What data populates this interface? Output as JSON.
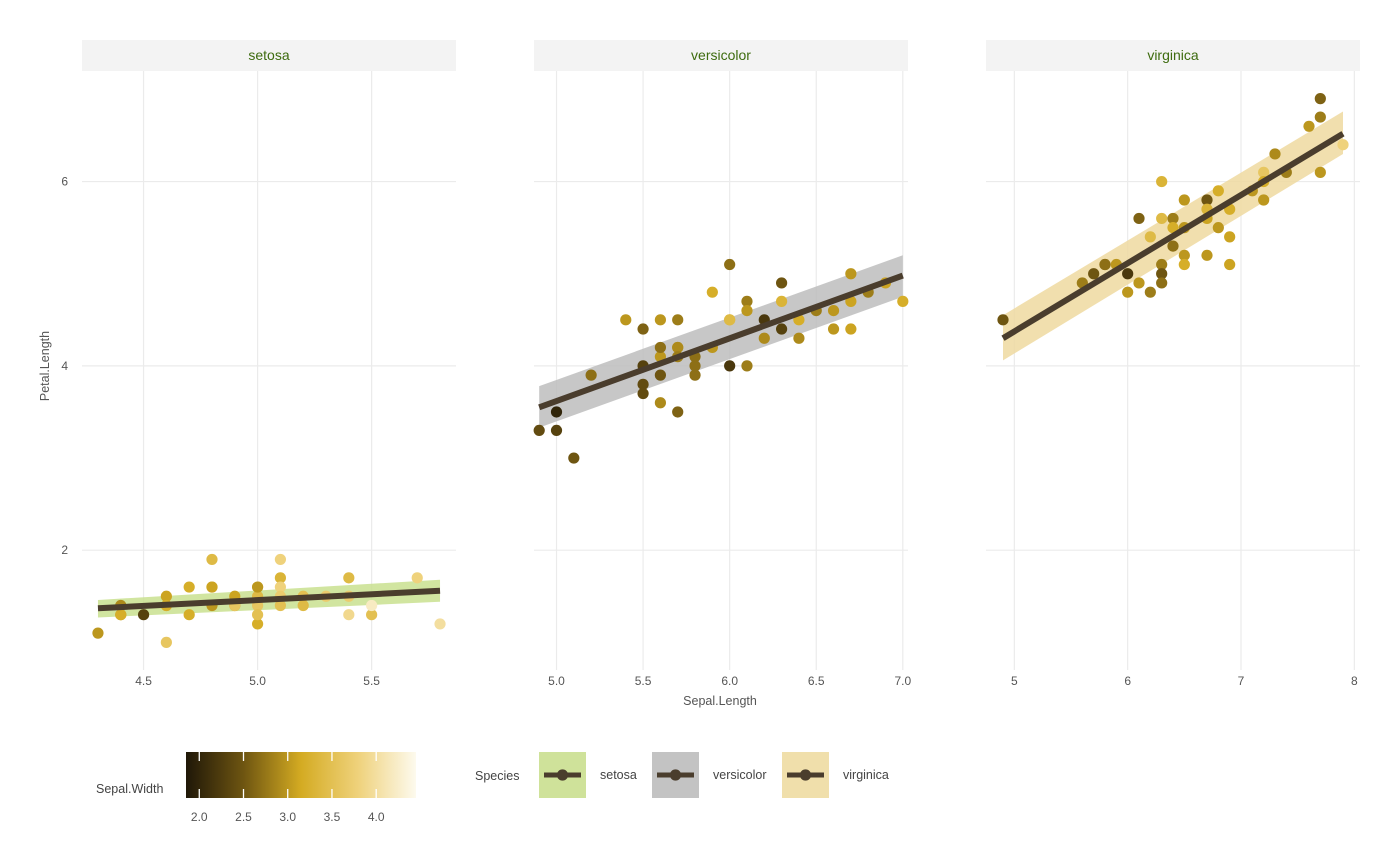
{
  "chart_data": {
    "type": "scatter",
    "facet_by": "Species",
    "xlabel": "Sepal.Length",
    "ylabel": "Petal.Length",
    "ylim": [
      0.7,
      7.2
    ],
    "y_ticks": [
      2,
      4,
      6
    ],
    "panels": [
      {
        "name": "setosa",
        "xlim": [
          4.23,
          5.87
        ],
        "x_ticks": [
          4.5,
          5.0,
          5.5
        ],
        "x_tick_labels": [
          "4.5",
          "5.0",
          "5.5"
        ],
        "band_color": "#c9e08f",
        "fit": {
          "x0": 4.3,
          "y0": 1.37,
          "x1": 5.8,
          "y1": 1.56,
          "lo0": 1.27,
          "hi0": 1.46,
          "lo1": 1.44,
          "hi1": 1.68
        },
        "points": [
          [
            4.3,
            1.1,
            3.0
          ],
          [
            4.4,
            1.4,
            2.9
          ],
          [
            4.4,
            1.3,
            3.0
          ],
          [
            4.4,
            1.3,
            3.2
          ],
          [
            4.5,
            1.3,
            2.3
          ],
          [
            4.6,
            1.4,
            3.4
          ],
          [
            4.6,
            1.5,
            3.1
          ],
          [
            4.6,
            1.0,
            3.6
          ],
          [
            4.6,
            1.4,
            3.2
          ],
          [
            4.7,
            1.6,
            3.2
          ],
          [
            4.7,
            1.3,
            3.2
          ],
          [
            4.8,
            1.9,
            3.4
          ],
          [
            4.8,
            1.6,
            3.4
          ],
          [
            4.8,
            1.4,
            3.0
          ],
          [
            4.8,
            1.6,
            3.1
          ],
          [
            4.9,
            1.4,
            3.0
          ],
          [
            4.9,
            1.5,
            3.1
          ],
          [
            4.9,
            1.4,
            3.6
          ],
          [
            5.0,
            1.6,
            3.5
          ],
          [
            5.0,
            1.4,
            3.6
          ],
          [
            5.0,
            1.5,
            3.4
          ],
          [
            5.0,
            1.2,
            3.2
          ],
          [
            5.0,
            1.3,
            3.5
          ],
          [
            5.0,
            1.6,
            3.0
          ],
          [
            5.1,
            1.9,
            3.8
          ],
          [
            5.1,
            1.7,
            3.3
          ],
          [
            5.1,
            1.6,
            3.8
          ],
          [
            5.1,
            1.4,
            3.5
          ],
          [
            5.1,
            1.5,
            3.7
          ],
          [
            5.2,
            1.5,
            3.5
          ],
          [
            5.2,
            1.4,
            3.4
          ],
          [
            5.3,
            1.5,
            3.7
          ],
          [
            5.4,
            1.7,
            3.4
          ],
          [
            5.4,
            1.5,
            3.7
          ],
          [
            5.4,
            1.3,
            3.9
          ],
          [
            5.5,
            1.3,
            3.5
          ],
          [
            5.5,
            1.4,
            4.2
          ],
          [
            5.7,
            1.7,
            3.8
          ],
          [
            5.8,
            1.2,
            4.0
          ]
        ]
      },
      {
        "name": "versicolor",
        "xlim": [
          4.87,
          7.03
        ],
        "x_ticks": [
          5.0,
          5.5,
          6.0,
          6.5,
          7.0
        ],
        "x_tick_labels": [
          "5.0",
          "5.5",
          "6.0",
          "6.5",
          "7.0"
        ],
        "band_color": "#bdbdbd",
        "fit": {
          "x0": 4.9,
          "y0": 3.55,
          "x1": 7.0,
          "y1": 4.98,
          "lo0": 3.33,
          "hi0": 3.78,
          "lo1": 4.75,
          "hi1": 5.2
        },
        "points": [
          [
            4.9,
            3.3,
            2.4
          ],
          [
            5.0,
            3.5,
            2.0
          ],
          [
            5.0,
            3.3,
            2.3
          ],
          [
            5.1,
            3.0,
            2.5
          ],
          [
            5.2,
            3.9,
            2.7
          ],
          [
            5.4,
            4.5,
            3.0
          ],
          [
            5.5,
            4.0,
            2.3
          ],
          [
            5.5,
            4.4,
            2.6
          ],
          [
            5.5,
            3.8,
            2.4
          ],
          [
            5.5,
            3.7,
            2.4
          ],
          [
            5.6,
            4.5,
            3.0
          ],
          [
            5.6,
            4.1,
            3.0
          ],
          [
            5.6,
            4.2,
            2.7
          ],
          [
            5.6,
            3.9,
            2.5
          ],
          [
            5.6,
            3.6,
            2.9
          ],
          [
            5.7,
            4.5,
            2.8
          ],
          [
            5.7,
            4.2,
            3.0
          ],
          [
            5.7,
            4.2,
            2.9
          ],
          [
            5.7,
            4.1,
            2.8
          ],
          [
            5.7,
            3.5,
            2.6
          ],
          [
            5.8,
            4.1,
            2.7
          ],
          [
            5.8,
            4.0,
            2.7
          ],
          [
            5.8,
            3.9,
            2.7
          ],
          [
            5.9,
            4.8,
            3.2
          ],
          [
            5.9,
            4.2,
            3.0
          ],
          [
            6.0,
            5.1,
            2.7
          ],
          [
            6.0,
            4.5,
            3.4
          ],
          [
            6.0,
            4.5,
            3.4
          ],
          [
            6.0,
            4.0,
            2.2
          ],
          [
            6.1,
            4.7,
            2.8
          ],
          [
            6.1,
            4.6,
            3.0
          ],
          [
            6.1,
            4.0,
            2.8
          ],
          [
            6.2,
            4.5,
            2.2
          ],
          [
            6.2,
            4.3,
            2.9
          ],
          [
            6.3,
            4.9,
            2.5
          ],
          [
            6.3,
            4.7,
            3.3
          ],
          [
            6.3,
            4.4,
            2.3
          ],
          [
            6.4,
            4.5,
            3.2
          ],
          [
            6.4,
            4.3,
            2.9
          ],
          [
            6.5,
            4.6,
            2.8
          ],
          [
            6.6,
            4.6,
            3.0
          ],
          [
            6.6,
            4.4,
            3.0
          ],
          [
            6.7,
            5.0,
            3.0
          ],
          [
            6.7,
            4.7,
            3.1
          ],
          [
            6.7,
            4.4,
            3.1
          ],
          [
            6.8,
            4.8,
            2.8
          ],
          [
            6.9,
            4.9,
            3.1
          ],
          [
            7.0,
            4.7,
            3.2
          ]
        ]
      },
      {
        "name": "virginica",
        "xlim": [
          4.75,
          8.05
        ],
        "x_ticks": [
          5,
          6,
          7,
          8
        ],
        "x_tick_labels": [
          "5",
          "6",
          "7",
          "8"
        ],
        "band_color": "#efd9a0",
        "fit": {
          "x0": 4.9,
          "y0": 4.3,
          "x1": 7.9,
          "y1": 6.52,
          "lo0": 4.06,
          "hi0": 4.55,
          "lo1": 6.3,
          "hi1": 6.76
        },
        "points": [
          [
            4.9,
            4.5,
            2.5
          ],
          [
            5.6,
            4.9,
            2.8
          ],
          [
            5.7,
            5.0,
            2.5
          ],
          [
            5.8,
            5.1,
            2.7
          ],
          [
            5.8,
            5.1,
            2.7
          ],
          [
            5.9,
            5.1,
            3.0
          ],
          [
            6.0,
            5.0,
            2.2
          ],
          [
            6.0,
            4.8,
            3.0
          ],
          [
            6.1,
            5.6,
            2.6
          ],
          [
            6.1,
            4.9,
            3.0
          ],
          [
            6.2,
            5.4,
            3.4
          ],
          [
            6.2,
            4.8,
            2.8
          ],
          [
            6.3,
            6.0,
            3.3
          ],
          [
            6.3,
            5.6,
            3.4
          ],
          [
            6.3,
            5.1,
            2.8
          ],
          [
            6.3,
            5.0,
            2.5
          ],
          [
            6.3,
            4.9,
            2.7
          ],
          [
            6.4,
            5.6,
            2.8
          ],
          [
            6.4,
            5.5,
            3.2
          ],
          [
            6.4,
            5.3,
            2.7
          ],
          [
            6.5,
            5.8,
            3.0
          ],
          [
            6.5,
            5.5,
            3.0
          ],
          [
            6.5,
            5.2,
            3.0
          ],
          [
            6.5,
            5.1,
            3.2
          ],
          [
            6.7,
            5.8,
            2.5
          ],
          [
            6.7,
            5.7,
            3.3
          ],
          [
            6.7,
            5.6,
            3.1
          ],
          [
            6.7,
            5.2,
            3.0
          ],
          [
            6.8,
            5.9,
            3.2
          ],
          [
            6.8,
            5.5,
            3.0
          ],
          [
            6.9,
            5.7,
            3.2
          ],
          [
            6.9,
            5.4,
            3.1
          ],
          [
            6.9,
            5.1,
            3.1
          ],
          [
            7.1,
            5.9,
            3.0
          ],
          [
            7.2,
            6.1,
            3.6
          ],
          [
            7.2,
            6.0,
            3.2
          ],
          [
            7.2,
            5.8,
            3.0
          ],
          [
            7.3,
            6.3,
            2.9
          ],
          [
            7.4,
            6.1,
            2.8
          ],
          [
            7.6,
            6.6,
            3.0
          ],
          [
            7.7,
            6.9,
            2.6
          ],
          [
            7.7,
            6.7,
            2.8
          ],
          [
            7.7,
            6.1,
            3.0
          ],
          [
            7.9,
            6.4,
            3.8
          ]
        ]
      }
    ],
    "color_legend": {
      "title": "Sepal.Width",
      "range": [
        1.85,
        4.45
      ],
      "ticks": [
        2.0,
        2.5,
        3.0,
        3.5,
        4.0
      ],
      "tick_labels": [
        "2.0",
        "2.5",
        "3.0",
        "3.5",
        "4.0"
      ],
      "gradient": [
        "#1f1708",
        "#6e5511",
        "#d4ab22",
        "#efd27c",
        "#fdfaee"
      ]
    },
    "fill_legend": {
      "title": "Species",
      "items": [
        {
          "label": "setosa",
          "color": "#cfe29a"
        },
        {
          "label": "versicolor",
          "color": "#c3c3c3"
        },
        {
          "label": "virginica",
          "color": "#f0dfab"
        }
      ]
    },
    "colors": {
      "strip_bg": "#f3f3f3",
      "strip_text": "#3d6b0e",
      "grid": "#ebebeb",
      "axis_text": "#555555",
      "fit_line": "#4a3d2d"
    }
  }
}
